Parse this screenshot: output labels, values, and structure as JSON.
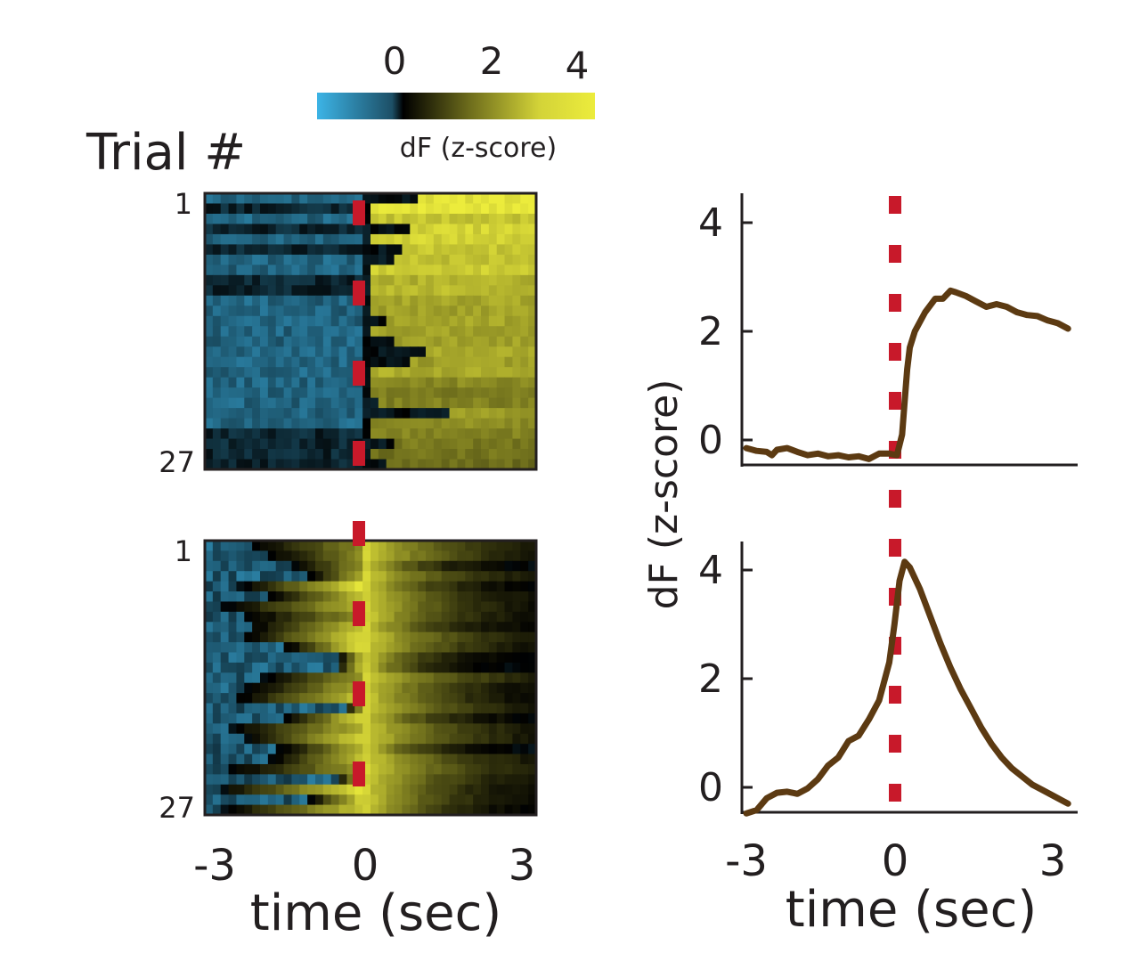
{
  "colorbar": {
    "label": "dF (z-score)",
    "ticks": [
      "0",
      "2",
      "4"
    ],
    "range": [
      -2,
      4.5
    ],
    "colors": {
      "low": "#3cb4e6",
      "mid": "#000000",
      "high": "#ecec3c"
    }
  },
  "heatmaps": {
    "ylabel": "Trial #",
    "yticks": [
      "1",
      "27"
    ],
    "xticks": [
      "-3",
      "0",
      "3"
    ],
    "xlabel": "time (sec)",
    "event_marker_color": "#c8192a"
  },
  "traces": {
    "ylabel": "dF (z-score)",
    "yticks": [
      "0",
      "2",
      "4"
    ],
    "xticks": [
      "-3",
      "0",
      "3"
    ],
    "xlabel": "time (sec)",
    "line_color": "#5c3a12",
    "event_marker_color": "#c8192a"
  },
  "chart_data": [
    {
      "type": "heatmap",
      "name": "top-trial-heatmap",
      "rows": 27,
      "time_range": [
        -3,
        3.3
      ],
      "value_label": "dF (z-score)",
      "description_of_values": "baseline ~ -1 before 0 s; sustained rise to ~2-4 after 0 s"
    },
    {
      "type": "heatmap",
      "name": "bottom-trial-heatmap",
      "rows": 27,
      "time_range": [
        -3,
        3.3
      ],
      "value_label": "dF (z-score)",
      "description_of_values": "gradual rise from ~-1 toward peak ~4 at 0 s, then decay to ~0 by 3 s"
    },
    {
      "type": "line",
      "name": "top-mean-trace",
      "xlabel": "time (sec)",
      "ylabel": "dF (z-score)",
      "xlim": [
        -3,
        3.4
      ],
      "ylim": [
        -0.5,
        4.5
      ],
      "x": [
        -3.0,
        -2.8,
        -2.6,
        -2.5,
        -2.4,
        -2.2,
        -2.0,
        -1.8,
        -1.6,
        -1.4,
        -1.2,
        -1.0,
        -0.8,
        -0.6,
        -0.4,
        -0.2,
        -0.05,
        0.05,
        0.1,
        0.15,
        0.2,
        0.3,
        0.5,
        0.7,
        0.85,
        1.0,
        1.1,
        1.3,
        1.5,
        1.7,
        1.9,
        2.1,
        2.3,
        2.5,
        2.7,
        2.9,
        3.1,
        3.3
      ],
      "y": [
        -0.15,
        -0.2,
        -0.22,
        -0.28,
        -0.18,
        -0.15,
        -0.22,
        -0.28,
        -0.25,
        -0.3,
        -0.28,
        -0.32,
        -0.3,
        -0.35,
        -0.25,
        -0.25,
        -0.28,
        0.1,
        0.7,
        1.3,
        1.7,
        2.0,
        2.35,
        2.6,
        2.6,
        2.75,
        2.72,
        2.65,
        2.55,
        2.45,
        2.5,
        2.45,
        2.35,
        2.3,
        2.28,
        2.2,
        2.15,
        2.05
      ]
    },
    {
      "type": "line",
      "name": "bottom-mean-trace",
      "xlabel": "time (sec)",
      "ylabel": "dF (z-score)",
      "xlim": [
        -3,
        3.4
      ],
      "ylim": [
        -0.5,
        4.5
      ],
      "x": [
        -3.0,
        -2.8,
        -2.6,
        -2.4,
        -2.2,
        -2.0,
        -1.8,
        -1.6,
        -1.4,
        -1.2,
        -1.0,
        -0.8,
        -0.6,
        -0.4,
        -0.2,
        -0.1,
        0.0,
        0.1,
        0.2,
        0.4,
        0.6,
        0.8,
        1.0,
        1.2,
        1.4,
        1.6,
        1.8,
        2.0,
        2.2,
        2.4,
        2.6,
        2.8,
        3.0,
        3.2,
        3.3
      ],
      "y": [
        -0.48,
        -0.42,
        -0.2,
        -0.1,
        -0.08,
        -0.12,
        -0.02,
        0.15,
        0.4,
        0.55,
        0.85,
        0.95,
        1.25,
        1.6,
        2.3,
        3.0,
        3.8,
        4.15,
        4.05,
        3.65,
        3.15,
        2.65,
        2.2,
        1.8,
        1.45,
        1.1,
        0.8,
        0.55,
        0.35,
        0.2,
        0.05,
        -0.05,
        -0.15,
        -0.25,
        -0.3
      ]
    }
  ]
}
